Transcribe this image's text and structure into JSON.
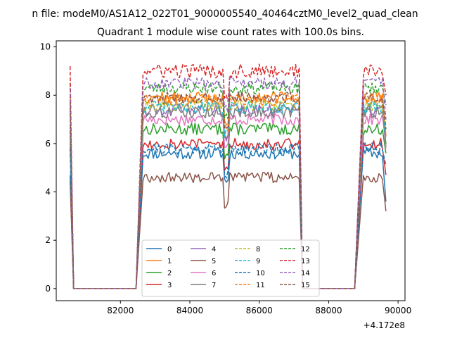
{
  "figure": {
    "suptitle": "n file: modeM0/AS1A12_022T01_9000005540_40464cztM0_level2_quad_clean",
    "offset_text": "+4.172e8"
  },
  "chart_data": {
    "type": "line",
    "title": "Quadrant 1 module wise count rates with 100.0s bins.",
    "xlabel": "",
    "ylabel": "",
    "xlim": [
      80150,
      90200
    ],
    "ylim": [
      -0.5,
      10.25
    ],
    "x_ticks": [
      82000,
      84000,
      86000,
      88000,
      90000
    ],
    "x_tick_labels": [
      "82000",
      "84000",
      "86000",
      "88000",
      "90000"
    ],
    "y_ticks": [
      0,
      2,
      4,
      6,
      8,
      10
    ],
    "y_tick_labels": [
      "0",
      "2",
      "4",
      "6",
      "8",
      "10"
    ],
    "grid": false,
    "legend_position": "lower center",
    "segments": [
      {
        "start": 80550,
        "end": 80650,
        "kind": "drop"
      },
      {
        "start": 80650,
        "end": 82450,
        "kind": "gap"
      },
      {
        "start": 82450,
        "end": 82650,
        "kind": "rise"
      },
      {
        "start": 82650,
        "end": 87150,
        "kind": "on",
        "dip": 85050
      },
      {
        "start": 87150,
        "end": 87250,
        "kind": "drop"
      },
      {
        "start": 87250,
        "end": 88750,
        "kind": "gap"
      },
      {
        "start": 88750,
        "end": 89000,
        "kind": "rise"
      },
      {
        "start": 89000,
        "end": 89550,
        "kind": "on"
      },
      {
        "start": 89550,
        "end": 89650,
        "kind": "end"
      }
    ],
    "series": [
      {
        "name": "0",
        "color": "#1f77b4",
        "dash": "solid",
        "start": 4.7,
        "level": 5.6,
        "end": 3.6,
        "noise": 0.25,
        "seed": 11
      },
      {
        "name": "1",
        "color": "#ff7f0e",
        "dash": "solid",
        "start": 8.0,
        "level": 7.9,
        "end": 6.3,
        "noise": 0.25,
        "seed": 12
      },
      {
        "name": "2",
        "color": "#2ca02c",
        "dash": "solid",
        "start": 7.5,
        "level": 6.6,
        "end": 5.6,
        "noise": 0.25,
        "seed": 13
      },
      {
        "name": "3",
        "color": "#d62728",
        "dash": "solid",
        "start": 6.0,
        "level": 6.0,
        "end": 4.7,
        "noise": 0.25,
        "seed": 14
      },
      {
        "name": "4",
        "color": "#9467bd",
        "dash": "solid",
        "start": 6.8,
        "level": 7.4,
        "end": 5.9,
        "noise": 0.25,
        "seed": 15
      },
      {
        "name": "5",
        "color": "#8c564b",
        "dash": "solid",
        "start": 4.5,
        "level": 4.6,
        "end": 3.2,
        "noise": 0.22,
        "seed": 16
      },
      {
        "name": "6",
        "color": "#e377c2",
        "dash": "solid",
        "start": 6.5,
        "level": 7.0,
        "end": 5.8,
        "noise": 0.25,
        "seed": 17
      },
      {
        "name": "7",
        "color": "#7f7f7f",
        "dash": "solid",
        "start": 6.5,
        "level": 7.3,
        "end": 6.0,
        "noise": 0.25,
        "seed": 18
      },
      {
        "name": "8",
        "color": "#bcbd22",
        "dash": "dashed",
        "start": 7.3,
        "level": 7.6,
        "end": 6.5,
        "noise": 0.25,
        "seed": 19
      },
      {
        "name": "9",
        "color": "#17becf",
        "dash": "dashed",
        "start": 6.2,
        "level": 7.5,
        "end": 6.2,
        "noise": 0.25,
        "seed": 20
      },
      {
        "name": "10",
        "color": "#1f77b4",
        "dash": "dashed",
        "start": 5.8,
        "level": 5.8,
        "end": 5.1,
        "noise": 0.25,
        "seed": 21
      },
      {
        "name": "11",
        "color": "#ff7f0e",
        "dash": "dashed",
        "start": 7.8,
        "level": 7.8,
        "end": 6.7,
        "noise": 0.25,
        "seed": 22
      },
      {
        "name": "12",
        "color": "#2ca02c",
        "dash": "dashed",
        "start": 8.5,
        "level": 8.3,
        "end": 7.6,
        "noise": 0.25,
        "seed": 23
      },
      {
        "name": "13",
        "color": "#d62728",
        "dash": "dashed",
        "start": 9.2,
        "level": 9.0,
        "end": 8.0,
        "noise": 0.3,
        "seed": 24
      },
      {
        "name": "14",
        "color": "#9467bd",
        "dash": "dashed",
        "start": 8.3,
        "level": 8.5,
        "end": 7.0,
        "noise": 0.25,
        "seed": 25
      },
      {
        "name": "15",
        "color": "#8c564b",
        "dash": "dashed",
        "start": 7.7,
        "level": 7.9,
        "end": 6.6,
        "noise": 0.25,
        "seed": 26
      }
    ]
  }
}
